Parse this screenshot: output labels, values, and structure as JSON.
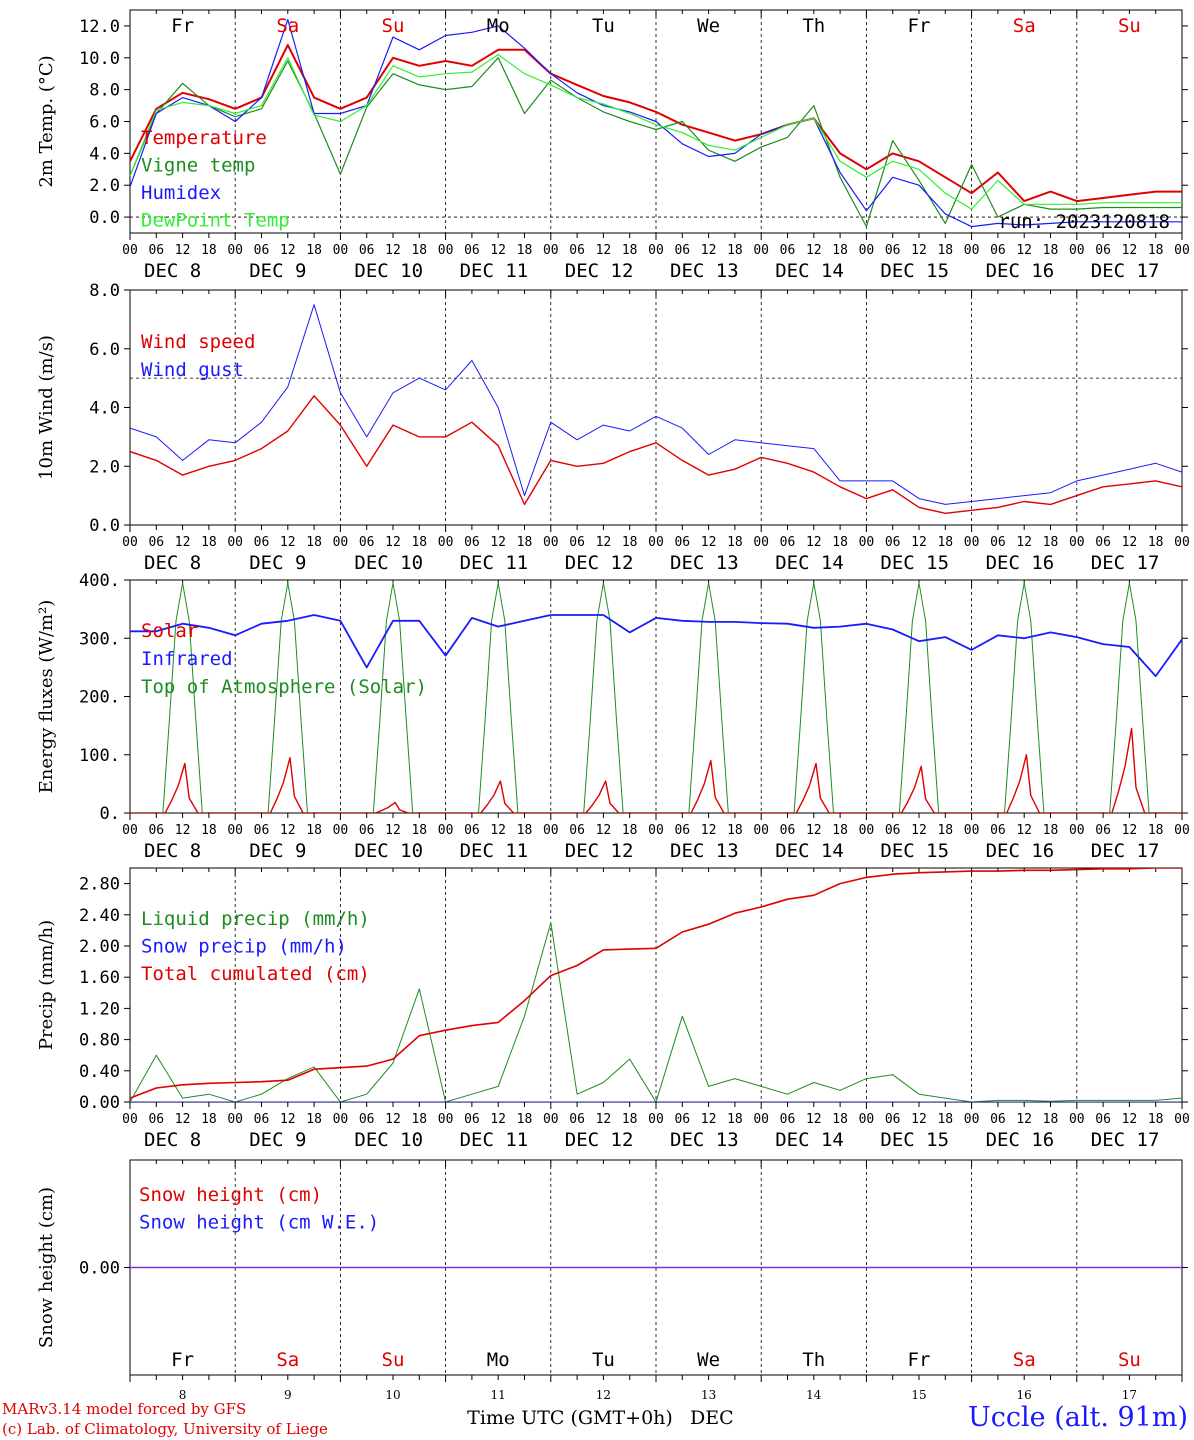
{
  "meta": {
    "credit_line1": "MARv3.14 model forced by GFS",
    "credit_line2": "(c) Lab. of Climatology, University of Liege",
    "station": "Uccle (alt. 91m)",
    "x_axis_title": "Time UTC (GMT+0h)",
    "x_axis_month": "DEC",
    "run_label": "run: 2023120818"
  },
  "time_axis": {
    "hour_ticks": [
      "00",
      "06",
      "12",
      "18"
    ],
    "date_labels": [
      "DEC  8",
      "DEC  9",
      "DEC 10",
      "DEC 11",
      "DEC 12",
      "DEC 13",
      "DEC 14",
      "DEC 15",
      "DEC 16",
      "DEC 17"
    ],
    "day_numbers": [
      "8",
      "9",
      "10",
      "11",
      "12",
      "13",
      "14",
      "15",
      "16",
      "17"
    ],
    "weekdays": [
      "Fr",
      "Sa",
      "Su",
      "Mo",
      "Tu",
      "We",
      "Th",
      "Fr",
      "Sa",
      "Su"
    ],
    "weekend": [
      false,
      true,
      true,
      false,
      false,
      false,
      false,
      false,
      true,
      true
    ],
    "weekday_colors": {
      "weekday": "#000000",
      "weekend": "#e00000"
    }
  },
  "chart_data": [
    {
      "id": "temperature",
      "type": "line",
      "ylabel": "2m Temp. (°C)",
      "ylim": [
        -1,
        13
      ],
      "yticks": [
        "0.0",
        "2.0",
        "4.0",
        "6.0",
        "8.0",
        "10.0",
        "12.0"
      ],
      "ytick_values": [
        0,
        2,
        4,
        6,
        8,
        10,
        12
      ],
      "dashed_ref": 0,
      "x_hours": [
        0,
        6,
        12,
        18,
        24,
        30,
        36,
        42,
        48,
        54,
        60,
        66,
        72,
        78,
        84,
        90,
        96,
        102,
        108,
        114,
        120,
        126,
        132,
        138,
        144,
        150,
        156,
        162,
        168,
        174,
        180,
        186,
        192,
        198,
        204,
        210,
        216,
        222,
        228,
        234,
        240
      ],
      "series": [
        {
          "name": "Temperature",
          "color": "#e00000",
          "width": 2,
          "values": [
            3.5,
            6.8,
            7.8,
            7.4,
            6.8,
            7.5,
            10.8,
            7.5,
            6.8,
            7.5,
            10,
            9.5,
            9.8,
            9.5,
            10.5,
            10.5,
            9.0,
            8.3,
            7.6,
            7.2,
            6.6,
            5.8,
            5.3,
            4.8,
            5.2,
            5.8,
            6.2,
            4.0,
            3.0,
            4.0,
            3.5,
            2.5,
            1.5,
            2.8,
            1.0,
            1.6,
            1.0,
            1.2,
            1.4,
            1.6,
            1.6
          ]
        },
        {
          "name": "Vigne temp",
          "color": "#1e8c1e",
          "width": 1.2,
          "values": [
            2.6,
            6.5,
            8.4,
            7.0,
            6.3,
            6.8,
            9.8,
            6.5,
            2.7,
            6.9,
            9.0,
            8.3,
            8.0,
            8.2,
            10.0,
            6.5,
            8.6,
            7.5,
            6.6,
            6.0,
            5.5,
            6.0,
            4.2,
            3.5,
            4.4,
            5.0,
            7.0,
            2.5,
            -0.6,
            4.8,
            2.3,
            -0.4,
            3.3,
            0.0,
            0.8,
            0.5,
            0.5,
            0.6,
            0.6,
            0.6,
            0.6
          ]
        },
        {
          "name": "Humidex",
          "color": "#1a1aff",
          "width": 1.2,
          "values": [
            1.9,
            6.5,
            7.5,
            7.0,
            6.0,
            7.5,
            12.4,
            6.5,
            6.5,
            7.0,
            11.3,
            10.5,
            11.4,
            11.6,
            12.0,
            10.6,
            9.0,
            7.8,
            7.0,
            6.6,
            6.0,
            4.6,
            3.8,
            4.0,
            5.2,
            5.8,
            6.2,
            2.8,
            0.4,
            2.5,
            2.0,
            0.2,
            -0.6,
            -0.4,
            -0.5,
            -0.4,
            -0.3,
            -0.3,
            -0.3,
            -0.3,
            -0.3
          ]
        },
        {
          "name": "DewPoint Temp",
          "color": "#33ee33",
          "width": 1.2,
          "values": [
            2.6,
            6.7,
            7.2,
            7.0,
            6.5,
            7.0,
            10.0,
            6.4,
            6.0,
            7.0,
            9.5,
            8.8,
            9.0,
            9.1,
            10.2,
            9.0,
            8.3,
            7.5,
            7.1,
            6.5,
            5.8,
            5.3,
            4.5,
            4.2,
            5.0,
            5.8,
            6.2,
            3.5,
            2.5,
            3.5,
            3.0,
            1.5,
            0.5,
            2.3,
            0.8,
            0.8,
            0.8,
            0.9,
            0.9,
            0.9,
            0.9
          ]
        }
      ]
    },
    {
      "id": "wind",
      "type": "line",
      "ylabel": "10m Wind (m/s)",
      "ylim": [
        0,
        8
      ],
      "yticks": [
        "0.0",
        "2.0",
        "4.0",
        "6.0",
        "8.0"
      ],
      "ytick_values": [
        0,
        2,
        4,
        6,
        8
      ],
      "dashed_ref": 5,
      "x_hours": [
        0,
        6,
        12,
        18,
        24,
        30,
        36,
        42,
        48,
        54,
        60,
        66,
        72,
        78,
        84,
        90,
        96,
        102,
        108,
        114,
        120,
        126,
        132,
        138,
        144,
        150,
        156,
        162,
        168,
        174,
        180,
        186,
        192,
        198,
        204,
        210,
        216,
        222,
        228,
        234,
        240
      ],
      "series": [
        {
          "name": "Wind speed",
          "color": "#e00000",
          "width": 1.4,
          "values": [
            2.5,
            2.2,
            1.7,
            2.0,
            2.2,
            2.6,
            3.2,
            4.4,
            3.4,
            2.0,
            3.4,
            3.0,
            3.0,
            3.5,
            2.7,
            0.7,
            2.2,
            2.0,
            2.1,
            2.5,
            2.8,
            2.2,
            1.7,
            1.9,
            2.3,
            2.1,
            1.8,
            1.3,
            0.9,
            1.2,
            0.6,
            0.4,
            0.5,
            0.6,
            0.8,
            0.7,
            1.0,
            1.3,
            1.4,
            1.5,
            1.3
          ]
        },
        {
          "name": "Wind gust",
          "color": "#1a1aff",
          "width": 1.0,
          "values": [
            3.3,
            3.0,
            2.2,
            2.9,
            2.8,
            3.5,
            4.7,
            7.5,
            4.5,
            3.0,
            4.5,
            5.0,
            4.6,
            5.6,
            4.0,
            1.0,
            3.5,
            2.9,
            3.4,
            3.2,
            3.7,
            3.3,
            2.4,
            2.9,
            2.8,
            2.7,
            2.6,
            1.5,
            1.5,
            1.5,
            0.9,
            0.7,
            0.8,
            0.9,
            1.0,
            1.1,
            1.5,
            1.7,
            1.9,
            2.1,
            1.8
          ]
        }
      ]
    },
    {
      "id": "energy",
      "type": "line",
      "ylabel": "Energy fluxes (W/m²)",
      "ylim": [
        0,
        400
      ],
      "yticks": [
        "0.",
        "100.",
        "200.",
        "300.",
        "400."
      ],
      "ytick_values": [
        0,
        100,
        200,
        300,
        400
      ],
      "dashed_ref": null,
      "day_peaks_solar": [
        85,
        95,
        18,
        55,
        55,
        90,
        85,
        80,
        100,
        145
      ],
      "day_peak_toa": 395,
      "series": [
        {
          "name": "Solar",
          "color": "#e00000",
          "width": 1.4
        },
        {
          "name": "Infrared",
          "color": "#1a1aff",
          "width": 1.8,
          "x_hours": [
            0,
            6,
            12,
            18,
            24,
            30,
            36,
            42,
            48,
            54,
            60,
            66,
            72,
            78,
            84,
            90,
            96,
            102,
            108,
            114,
            120,
            126,
            132,
            138,
            144,
            150,
            156,
            162,
            168,
            174,
            180,
            186,
            192,
            198,
            204,
            210,
            216,
            222,
            228,
            234,
            240
          ],
          "values": [
            312,
            312,
            325,
            318,
            305,
            325,
            330,
            340,
            330,
            250,
            330,
            330,
            270,
            335,
            320,
            330,
            340,
            340,
            340,
            310,
            335,
            330,
            328,
            328,
            326,
            325,
            318,
            320,
            325,
            315,
            295,
            302,
            280,
            305,
            300,
            310,
            302,
            290,
            285,
            235,
            298
          ]
        },
        {
          "name": "Top of Atmosphere (Solar)",
          "color": "#1e8c1e",
          "width": 1.0
        }
      ]
    },
    {
      "id": "precip",
      "type": "line",
      "ylabel": "Precip (mm/h)",
      "ylim": [
        0,
        3.0
      ],
      "yticks": [
        "0.00",
        "0.40",
        "0.80",
        "1.20",
        "1.60",
        "2.00",
        "2.40",
        "2.80"
      ],
      "ytick_values": [
        0,
        0.4,
        0.8,
        1.2,
        1.6,
        2.0,
        2.4,
        2.8
      ],
      "dashed_ref": null,
      "x_hours": [
        0,
        6,
        12,
        18,
        24,
        30,
        36,
        42,
        48,
        54,
        60,
        66,
        72,
        78,
        84,
        90,
        96,
        102,
        108,
        114,
        120,
        126,
        132,
        138,
        144,
        150,
        156,
        162,
        168,
        174,
        180,
        186,
        192,
        198,
        204,
        210,
        216,
        222,
        228,
        234,
        240
      ],
      "series": [
        {
          "name": "Liquid precip (mm/h)",
          "color": "#1e8c1e",
          "width": 1.0,
          "values": [
            0.0,
            0.6,
            0.05,
            0.1,
            0.0,
            0.1,
            0.3,
            0.45,
            0.0,
            0.1,
            0.5,
            1.45,
            0.0,
            0.1,
            0.2,
            1.1,
            2.3,
            0.1,
            0.25,
            0.55,
            0.0,
            1.1,
            0.2,
            0.3,
            0.2,
            0.1,
            0.25,
            0.15,
            0.3,
            0.35,
            0.1,
            0.05,
            0.0,
            0.02,
            0.02,
            0.01,
            0.02,
            0.02,
            0.02,
            0.02,
            0.05
          ]
        },
        {
          "name": "Snow precip (mm/h)",
          "color": "#1a1aff",
          "width": 1.0,
          "values": [
            0,
            0,
            0,
            0,
            0,
            0,
            0,
            0,
            0,
            0,
            0,
            0,
            0,
            0,
            0,
            0,
            0,
            0,
            0,
            0,
            0,
            0,
            0,
            0,
            0,
            0,
            0,
            0,
            0,
            0,
            0,
            0,
            0,
            0,
            0,
            0,
            0,
            0,
            0,
            0,
            0
          ]
        },
        {
          "name": "Total cumulated (cm)",
          "color": "#e00000",
          "width": 1.6,
          "values": [
            0.05,
            0.18,
            0.22,
            0.24,
            0.25,
            0.26,
            0.28,
            0.42,
            0.44,
            0.46,
            0.55,
            0.85,
            0.92,
            0.98,
            1.02,
            1.3,
            1.62,
            1.75,
            1.95,
            1.96,
            1.97,
            2.18,
            2.28,
            2.42,
            2.5,
            2.6,
            2.65,
            2.8,
            2.88,
            2.92,
            2.94,
            2.95,
            2.96,
            2.96,
            2.97,
            2.97,
            2.98,
            2.99,
            2.99,
            3.0,
            3.0
          ]
        }
      ]
    },
    {
      "id": "snow",
      "type": "line",
      "ylabel": "Snow height (cm)",
      "ylim": [
        -1,
        1
      ],
      "yticks": [
        "0.00"
      ],
      "ytick_values": [
        0
      ],
      "dashed_ref": null,
      "series": [
        {
          "name": "Snow height (cm)",
          "color": "#e00000",
          "width": 1.0
        },
        {
          "name": "Snow height (cm W.E.)",
          "color": "#1a1aff",
          "width": 1.0
        }
      ],
      "flat_line_color": "#8a2be2"
    }
  ]
}
